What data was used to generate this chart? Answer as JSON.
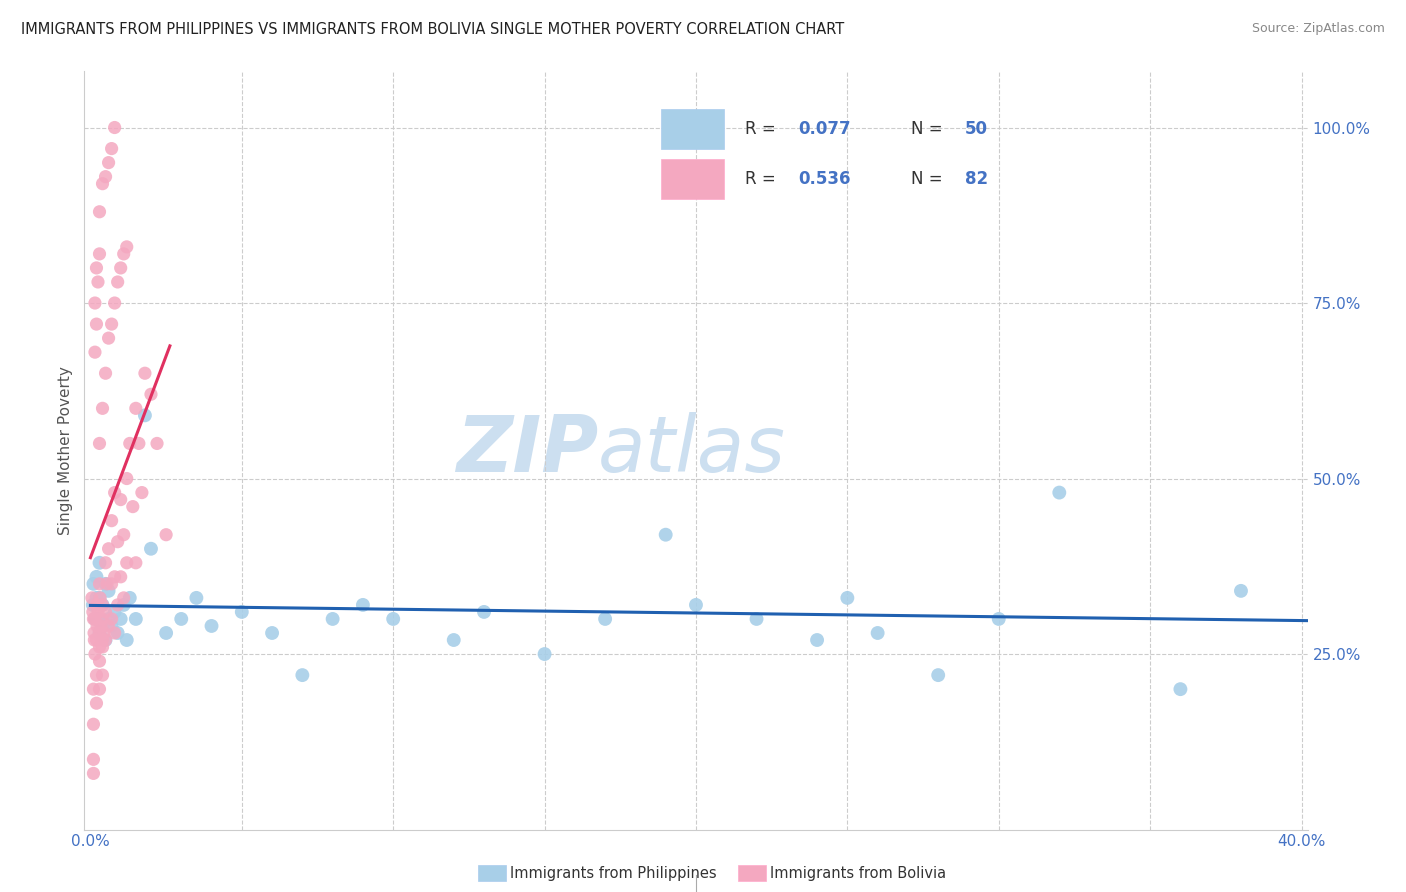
{
  "title": "IMMIGRANTS FROM PHILIPPINES VS IMMIGRANTS FROM BOLIVIA SINGLE MOTHER POVERTY CORRELATION CHART",
  "source": "Source: ZipAtlas.com",
  "ylabel": "Single Mother Poverty",
  "ytick_labels": [
    "25.0%",
    "50.0%",
    "75.0%",
    "100.0%"
  ],
  "ytick_values": [
    0.25,
    0.5,
    0.75,
    1.0
  ],
  "xtick_values": [
    0.0,
    0.05,
    0.1,
    0.15,
    0.2,
    0.25,
    0.3,
    0.35,
    0.4
  ],
  "xlim": [
    -0.002,
    0.402
  ],
  "ylim": [
    0.0,
    1.08
  ],
  "legend_R1": "0.077",
  "legend_N1": "50",
  "legend_R2": "0.536",
  "legend_N2": "82",
  "color_philippines": "#a8cfe8",
  "color_bolivia": "#f4a8c0",
  "color_philippines_line": "#2060b0",
  "color_bolivia_line": "#e03060",
  "color_grid": "#cccccc",
  "watermark_text_1": "ZIP",
  "watermark_text_2": "atlas",
  "watermark_color": "#ccdff0",
  "philippines_x": [
    0.0008,
    0.001,
    0.0015,
    0.002,
    0.002,
    0.0025,
    0.003,
    0.003,
    0.003,
    0.004,
    0.004,
    0.005,
    0.005,
    0.006,
    0.006,
    0.007,
    0.008,
    0.009,
    0.01,
    0.011,
    0.012,
    0.013,
    0.015,
    0.018,
    0.02,
    0.025,
    0.03,
    0.035,
    0.04,
    0.05,
    0.06,
    0.07,
    0.08,
    0.09,
    0.1,
    0.12,
    0.13,
    0.15,
    0.17,
    0.19,
    0.2,
    0.22,
    0.24,
    0.25,
    0.26,
    0.28,
    0.3,
    0.32,
    0.36,
    0.38
  ],
  "philippines_y": [
    0.32,
    0.35,
    0.3,
    0.33,
    0.36,
    0.3,
    0.28,
    0.33,
    0.38,
    0.29,
    0.32,
    0.27,
    0.35,
    0.3,
    0.34,
    0.29,
    0.31,
    0.28,
    0.3,
    0.32,
    0.27,
    0.33,
    0.3,
    0.59,
    0.4,
    0.28,
    0.3,
    0.33,
    0.29,
    0.31,
    0.28,
    0.22,
    0.3,
    0.32,
    0.3,
    0.27,
    0.31,
    0.25,
    0.3,
    0.42,
    0.32,
    0.3,
    0.27,
    0.33,
    0.28,
    0.22,
    0.3,
    0.48,
    0.2,
    0.34
  ],
  "bolivia_x": [
    0.0005,
    0.0008,
    0.001,
    0.0012,
    0.0013,
    0.0015,
    0.0015,
    0.002,
    0.002,
    0.0022,
    0.0025,
    0.003,
    0.003,
    0.003,
    0.0032,
    0.0035,
    0.0038,
    0.004,
    0.004,
    0.0045,
    0.005,
    0.005,
    0.005,
    0.0055,
    0.006,
    0.006,
    0.007,
    0.007,
    0.007,
    0.008,
    0.008,
    0.008,
    0.009,
    0.009,
    0.01,
    0.01,
    0.011,
    0.011,
    0.012,
    0.012,
    0.013,
    0.014,
    0.015,
    0.015,
    0.016,
    0.017,
    0.018,
    0.02,
    0.022,
    0.025,
    0.003,
    0.004,
    0.005,
    0.006,
    0.007,
    0.008,
    0.009,
    0.01,
    0.011,
    0.012,
    0.0015,
    0.002,
    0.0025,
    0.003,
    0.0015,
    0.002,
    0.003,
    0.004,
    0.005,
    0.006,
    0.007,
    0.008,
    0.001,
    0.001,
    0.002,
    0.002,
    0.003,
    0.003,
    0.004,
    0.004,
    0.001,
    0.001
  ],
  "bolivia_y": [
    0.33,
    0.31,
    0.3,
    0.28,
    0.27,
    0.3,
    0.25,
    0.32,
    0.27,
    0.29,
    0.31,
    0.35,
    0.28,
    0.26,
    0.33,
    0.29,
    0.3,
    0.32,
    0.27,
    0.28,
    0.38,
    0.31,
    0.27,
    0.35,
    0.4,
    0.29,
    0.44,
    0.35,
    0.3,
    0.48,
    0.36,
    0.28,
    0.41,
    0.32,
    0.47,
    0.36,
    0.42,
    0.33,
    0.5,
    0.38,
    0.55,
    0.46,
    0.6,
    0.38,
    0.55,
    0.48,
    0.65,
    0.62,
    0.55,
    0.42,
    0.55,
    0.6,
    0.65,
    0.7,
    0.72,
    0.75,
    0.78,
    0.8,
    0.82,
    0.83,
    0.68,
    0.72,
    0.78,
    0.82,
    0.75,
    0.8,
    0.88,
    0.92,
    0.93,
    0.95,
    0.97,
    1.0,
    0.2,
    0.15,
    0.18,
    0.22,
    0.2,
    0.24,
    0.22,
    0.26,
    0.1,
    0.08
  ]
}
